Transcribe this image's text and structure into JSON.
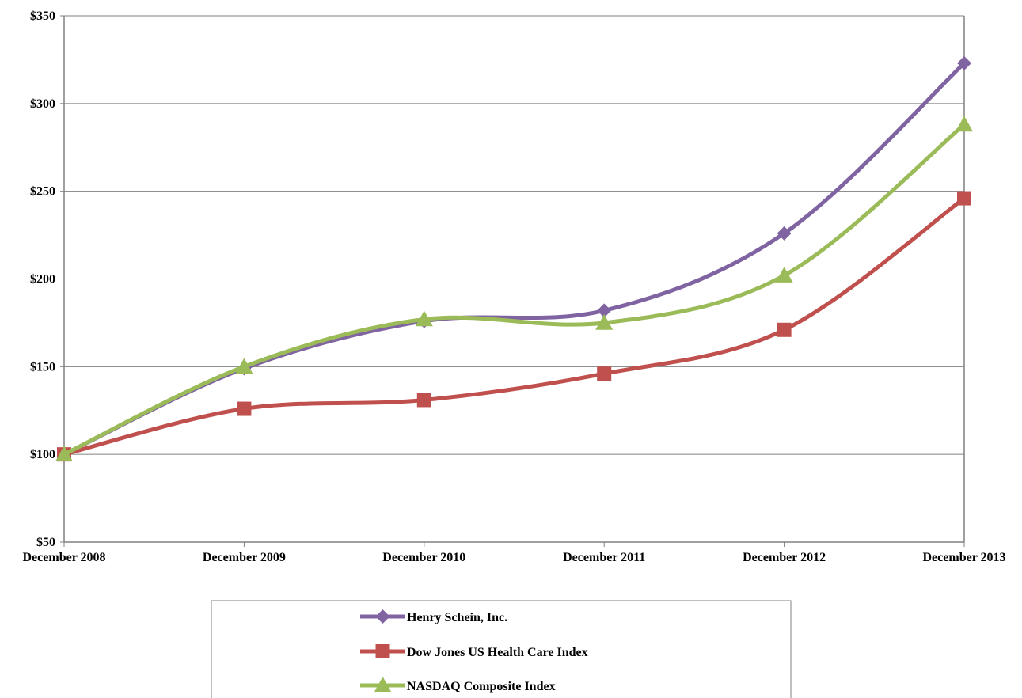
{
  "chart_data": {
    "type": "line",
    "categories": [
      "December 2008",
      "December 2009",
      "December 2010",
      "December 2011",
      "December 2012",
      "December 2013"
    ],
    "series": [
      {
        "name": "Henry Schein, Inc.",
        "values": [
          100,
          149,
          176,
          182,
          226,
          323
        ],
        "color": "#8064a2",
        "marker": "diamond"
      },
      {
        "name": "Dow Jones US Health Care Index",
        "values": [
          100,
          126,
          131,
          146,
          171,
          246
        ],
        "color": "#c0504d",
        "marker": "square"
      },
      {
        "name": "NASDAQ Composite Index",
        "values": [
          100,
          150,
          177,
          175,
          202,
          288
        ],
        "color": "#9bbb59",
        "marker": "triangle"
      }
    ],
    "y_ticks": [
      50,
      100,
      150,
      200,
      250,
      300,
      350
    ],
    "y_tick_labels": [
      "$50",
      "$100",
      "$150",
      "$200",
      "$250",
      "$300",
      "$350"
    ],
    "ylim": [
      50,
      350
    ],
    "grid": true,
    "legend": "bottom-center",
    "line_style": "smooth"
  }
}
